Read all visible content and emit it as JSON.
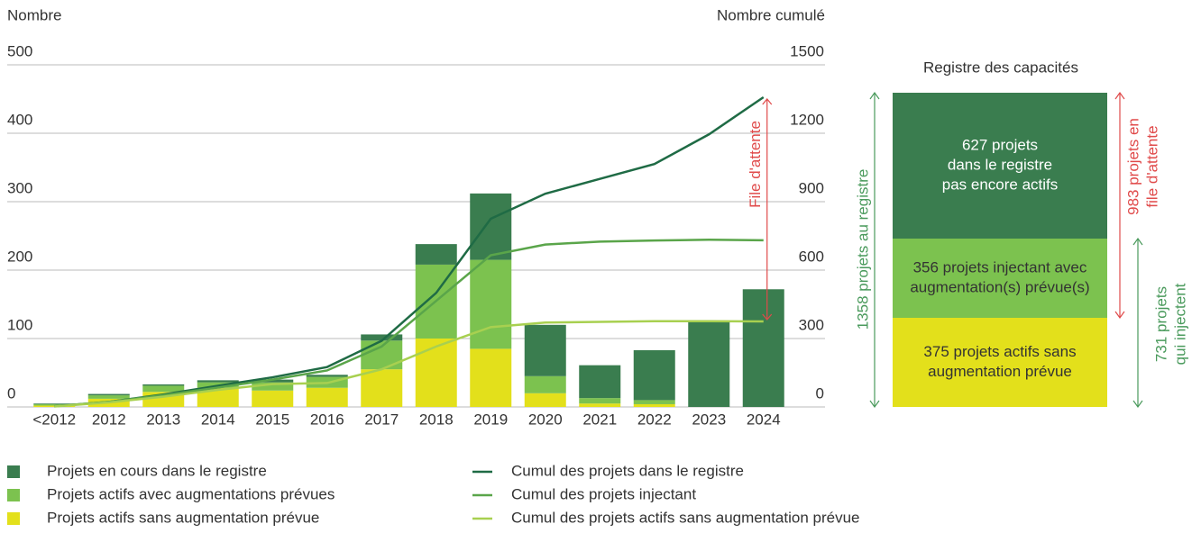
{
  "chart_data": {
    "type": "bar",
    "y_label": "Nombre",
    "y2_label": "Nombre cumulé",
    "categories": [
      "<2012",
      "2012",
      "2013",
      "2014",
      "2015",
      "2016",
      "2017",
      "2018",
      "2019",
      "2020",
      "2021",
      "2022",
      "2023",
      "2024"
    ],
    "series": [
      {
        "name": "Projets actifs sans augmentation prévue",
        "type": "bar",
        "color": "#e3e01b",
        "values": [
          2,
          12,
          22,
          28,
          24,
          28,
          55,
          100,
          85,
          20,
          5,
          4,
          0,
          0
        ]
      },
      {
        "name": "Projets actifs avec augmentations prévues",
        "type": "bar",
        "color": "#7cc24f",
        "values": [
          2,
          5,
          9,
          8,
          12,
          16,
          42,
          108,
          130,
          25,
          8,
          6,
          0,
          0
        ]
      },
      {
        "name": "Projets en cours dans le registre",
        "type": "bar",
        "color": "#3a7d4f",
        "values": [
          1,
          2,
          2,
          3,
          4,
          3,
          9,
          30,
          97,
          75,
          48,
          73,
          126,
          172
        ]
      },
      {
        "name": "Cumul des projets dans le registre",
        "type": "line",
        "axis": "y2",
        "color": "#1f6b45",
        "values": [
          3,
          22,
          55,
          93,
          130,
          175,
          290,
          500,
          825,
          935,
          1000,
          1065,
          1195,
          1358
        ]
      },
      {
        "name": "Cumul des projets injectant",
        "type": "line",
        "axis": "y2",
        "color": "#5aa54a",
        "values": [
          3,
          22,
          52,
          85,
          120,
          160,
          265,
          465,
          665,
          712,
          725,
          730,
          733,
          731
        ]
      },
      {
        "name": "Cumul des projets actifs sans augmentation prévue",
        "type": "line",
        "axis": "y2",
        "color": "#a8d050",
        "values": [
          2,
          20,
          45,
          75,
          100,
          105,
          165,
          265,
          350,
          370,
          373,
          376,
          376,
          375
        ]
      }
    ],
    "ylim": [
      0,
      500
    ],
    "yticks": [
      0,
      100,
      200,
      300,
      400,
      500
    ],
    "y2lim": [
      0,
      1500
    ],
    "y2ticks": [
      0,
      300,
      600,
      900,
      1200,
      1500
    ],
    "annotation": "File d'attente",
    "annotation_color": "#e04a4a"
  },
  "capacity_register": {
    "title": "Registre des capacités",
    "segments": [
      {
        "lines": [
          "627 projets",
          "dans le registre",
          "pas encore actifs"
        ],
        "color": "#3a7d4f",
        "text_color": "#fff"
      },
      {
        "lines": [
          "356 projets injectant avec",
          "augmentation(s) prévue(s)"
        ],
        "color": "#7cc24f",
        "text_color": "#333"
      },
      {
        "lines": [
          "375 projets actifs sans",
          "augmentation prévue"
        ],
        "color": "#e3e01b",
        "text_color": "#333"
      }
    ],
    "left_label": "1358 projets au registre",
    "queue_label": [
      "983 projets en",
      "file d'attente"
    ],
    "inject_label": [
      "731 projets",
      "qui injectent"
    ]
  }
}
